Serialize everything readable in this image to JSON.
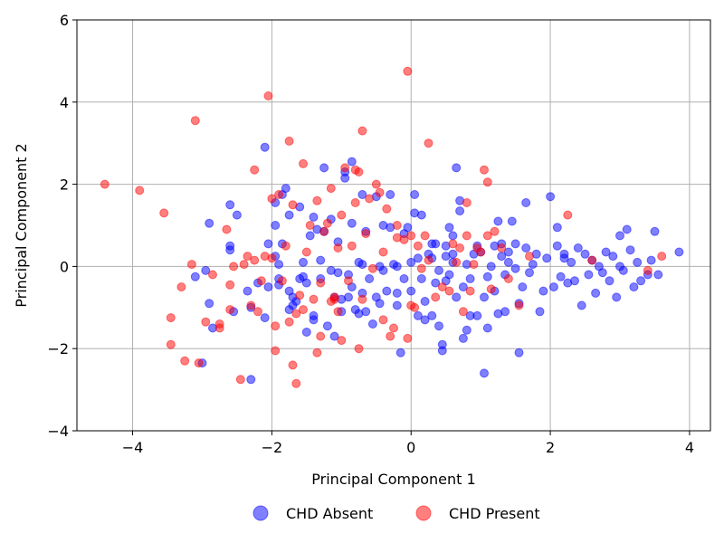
{
  "chart_data": {
    "type": "scatter",
    "title": "",
    "xlabel": "Principal Component 1",
    "ylabel": "Principal Component 2",
    "xlim": [
      -4.8,
      4.3
    ],
    "ylim": [
      -4,
      6
    ],
    "xticks": [
      -4,
      -2,
      0,
      2,
      4
    ],
    "yticks": [
      -4,
      -2,
      0,
      2,
      4,
      6
    ],
    "xtick_labels": [
      "−4",
      "−2",
      "0",
      "2",
      "4"
    ],
    "ytick_labels": [
      "−4",
      "−2",
      "0",
      "2",
      "4",
      "6"
    ],
    "grid": true,
    "legend_position": "bottom-center",
    "series": [
      {
        "name": "CHD Absent",
        "color": "#0000ff",
        "points": [
          [
            -3.1,
            -0.25
          ],
          [
            -2.95,
            -0.1
          ],
          [
            -2.9,
            1.05
          ],
          [
            -2.9,
            -0.9
          ],
          [
            -2.85,
            -1.5
          ],
          [
            -3.0,
            -2.35
          ],
          [
            -2.6,
            0.5
          ],
          [
            -2.6,
            0.4
          ],
          [
            -2.6,
            1.5
          ],
          [
            -2.55,
            -1.1
          ],
          [
            -2.5,
            1.25
          ],
          [
            -2.35,
            -0.6
          ],
          [
            -2.3,
            -1.0
          ],
          [
            -2.3,
            -2.75
          ],
          [
            -2.2,
            -0.4
          ],
          [
            -2.05,
            -0.5
          ],
          [
            -2.1,
            -1.25
          ],
          [
            -2.05,
            0.55
          ],
          [
            -2.1,
            2.9
          ],
          [
            -1.95,
            1.55
          ],
          [
            -1.95,
            1.0
          ],
          [
            -1.95,
            0.25
          ],
          [
            -1.9,
            0.05
          ],
          [
            -1.9,
            -0.3
          ],
          [
            -1.9,
            -0.45
          ],
          [
            -1.85,
            0.55
          ],
          [
            -1.85,
            1.75
          ],
          [
            -1.8,
            1.9
          ],
          [
            -1.75,
            1.25
          ],
          [
            -1.75,
            -0.6
          ],
          [
            -1.7,
            -0.95
          ],
          [
            -1.75,
            -1.05
          ],
          [
            -1.7,
            -0.75
          ],
          [
            -1.65,
            -0.85
          ],
          [
            -1.6,
            1.45
          ],
          [
            -1.55,
            0.1
          ],
          [
            -1.55,
            -0.25
          ],
          [
            -1.5,
            -0.4
          ],
          [
            -1.5,
            -1.6
          ],
          [
            -1.45,
            0.75
          ],
          [
            -1.4,
            1.2
          ],
          [
            -1.4,
            -1.3
          ],
          [
            -1.4,
            -1.2
          ],
          [
            -1.35,
            0.9
          ],
          [
            -1.3,
            0.15
          ],
          [
            -1.3,
            -0.3
          ],
          [
            -1.25,
            2.4
          ],
          [
            -1.25,
            0.85
          ],
          [
            -1.2,
            -1.45
          ],
          [
            -1.15,
            1.15
          ],
          [
            -1.15,
            -0.1
          ],
          [
            -1.1,
            -0.75
          ],
          [
            -1.1,
            -1.7
          ],
          [
            -1.05,
            0.6
          ],
          [
            -1.05,
            -0.15
          ],
          [
            -1.0,
            -1.1
          ],
          [
            -0.95,
            2.15
          ],
          [
            -0.95,
            2.3
          ],
          [
            -0.9,
            -0.2
          ],
          [
            -0.9,
            -0.75
          ],
          [
            -0.85,
            2.55
          ],
          [
            -0.85,
            1.05
          ],
          [
            -0.85,
            -0.5
          ],
          [
            -0.8,
            -1.05
          ],
          [
            -0.75,
            -1.15
          ],
          [
            -0.75,
            0.1
          ],
          [
            -0.7,
            1.75
          ],
          [
            -0.7,
            0.05
          ],
          [
            -0.7,
            -0.65
          ],
          [
            -0.65,
            -1.1
          ],
          [
            -0.65,
            0.85
          ],
          [
            -0.6,
            -0.3
          ],
          [
            -0.55,
            -1.4
          ],
          [
            -0.5,
            -0.75
          ],
          [
            -0.5,
            1.7
          ],
          [
            -0.45,
            -0.9
          ],
          [
            -0.45,
            0.0
          ],
          [
            -0.4,
            -0.1
          ],
          [
            -0.4,
            1.0
          ],
          [
            -0.35,
            -0.6
          ],
          [
            -0.3,
            0.95
          ],
          [
            -0.3,
            1.75
          ],
          [
            -0.25,
            0.05
          ],
          [
            -0.2,
            -0.65
          ],
          [
            -0.2,
            -0.95
          ],
          [
            -0.15,
            -2.1
          ],
          [
            -0.1,
            0.8
          ],
          [
            -0.1,
            -0.3
          ],
          [
            -0.05,
            0.95
          ],
          [
            0.0,
            -0.6
          ],
          [
            0.0,
            0.1
          ],
          [
            0.05,
            1.3
          ],
          [
            0.05,
            1.75
          ],
          [
            0.1,
            0.2
          ],
          [
            0.1,
            -1.2
          ],
          [
            0.15,
            1.25
          ],
          [
            0.15,
            -0.3
          ],
          [
            0.2,
            -0.85
          ],
          [
            0.2,
            -1.3
          ],
          [
            0.25,
            0.3
          ],
          [
            0.3,
            -1.2
          ],
          [
            0.3,
            0.2
          ],
          [
            0.35,
            -0.4
          ],
          [
            0.35,
            0.55
          ],
          [
            0.4,
            -0.1
          ],
          [
            0.4,
            -1.45
          ],
          [
            0.45,
            -2.05
          ],
          [
            0.45,
            -1.9
          ],
          [
            0.5,
            0.5
          ],
          [
            0.5,
            -0.35
          ],
          [
            0.5,
            0.25
          ],
          [
            0.55,
            0.95
          ],
          [
            0.55,
            -0.2
          ],
          [
            0.6,
            0.75
          ],
          [
            0.6,
            0.3
          ],
          [
            0.65,
            -0.75
          ],
          [
            0.65,
            2.4
          ],
          [
            0.7,
            1.35
          ],
          [
            0.7,
            1.6
          ],
          [
            0.75,
            -1.75
          ],
          [
            0.75,
            -0.5
          ],
          [
            0.8,
            -1.55
          ],
          [
            0.8,
            0.05
          ],
          [
            0.85,
            -0.3
          ],
          [
            0.85,
            -1.2
          ],
          [
            0.9,
            0.3
          ],
          [
            0.95,
            -1.2
          ],
          [
            1.0,
            0.35
          ],
          [
            1.05,
            -0.75
          ],
          [
            1.05,
            -2.6
          ],
          [
            1.1,
            -0.25
          ],
          [
            1.1,
            -1.5
          ],
          [
            1.15,
            0.0
          ],
          [
            1.2,
            -0.6
          ],
          [
            1.2,
            0.5
          ],
          [
            1.25,
            1.1
          ],
          [
            1.25,
            -1.15
          ],
          [
            1.3,
            0.25
          ],
          [
            1.3,
            0.55
          ],
          [
            1.35,
            -0.2
          ],
          [
            1.35,
            -1.1
          ],
          [
            1.4,
            0.1
          ],
          [
            1.45,
            1.1
          ],
          [
            1.5,
            -0.05
          ],
          [
            1.5,
            0.55
          ],
          [
            1.55,
            -2.1
          ],
          [
            1.55,
            -0.9
          ],
          [
            1.6,
            -0.5
          ],
          [
            1.65,
            1.55
          ],
          [
            1.65,
            0.45
          ],
          [
            1.7,
            -0.15
          ],
          [
            1.75,
            0.05
          ],
          [
            1.8,
            0.3
          ],
          [
            1.85,
            -1.1
          ],
          [
            1.9,
            -0.6
          ],
          [
            1.95,
            0.2
          ],
          [
            2.0,
            1.7
          ],
          [
            2.05,
            -0.5
          ],
          [
            2.1,
            0.95
          ],
          [
            2.1,
            0.5
          ],
          [
            2.15,
            -0.25
          ],
          [
            2.2,
            0.3
          ],
          [
            2.25,
            -0.4
          ],
          [
            2.3,
            0.1
          ],
          [
            2.35,
            -0.35
          ],
          [
            2.4,
            0.45
          ],
          [
            2.45,
            -0.95
          ],
          [
            2.5,
            0.3
          ],
          [
            2.55,
            -0.2
          ],
          [
            2.6,
            0.15
          ],
          [
            2.65,
            -0.65
          ],
          [
            2.7,
            0.0
          ],
          [
            2.75,
            -0.15
          ],
          [
            2.8,
            0.35
          ],
          [
            2.85,
            -0.35
          ],
          [
            2.9,
            0.25
          ],
          [
            2.95,
            -0.75
          ],
          [
            3.0,
            0.75
          ],
          [
            3.05,
            -0.1
          ],
          [
            3.1,
            0.9
          ],
          [
            3.15,
            0.4
          ],
          [
            3.2,
            -0.5
          ],
          [
            3.25,
            0.1
          ],
          [
            3.3,
            -0.35
          ],
          [
            3.4,
            -0.2
          ],
          [
            3.45,
            0.15
          ],
          [
            3.5,
            0.85
          ],
          [
            3.55,
            -0.2
          ],
          [
            3.85,
            0.35
          ],
          [
            3.0,
            0.0
          ],
          [
            2.2,
            0.2
          ],
          [
            1.4,
            0.35
          ],
          [
            0.6,
            0.1
          ],
          [
            -0.2,
            0.0
          ],
          [
            -1.0,
            -0.8
          ],
          [
            -1.6,
            -0.3
          ],
          [
            0.3,
            0.55
          ],
          [
            0.95,
            0.5
          ]
        ]
      },
      {
        "name": "CHD Present",
        "color": "#ff0000",
        "points": [
          [
            -4.4,
            2.0
          ],
          [
            -3.9,
            1.85
          ],
          [
            -3.55,
            1.3
          ],
          [
            -3.45,
            -1.25
          ],
          [
            -3.45,
            -1.9
          ],
          [
            -3.3,
            -0.5
          ],
          [
            -3.25,
            -2.3
          ],
          [
            -3.15,
            0.05
          ],
          [
            -3.1,
            3.55
          ],
          [
            -3.05,
            -2.35
          ],
          [
            -2.95,
            -1.35
          ],
          [
            -2.85,
            -0.2
          ],
          [
            -2.75,
            -1.5
          ],
          [
            -2.75,
            -1.4
          ],
          [
            -2.65,
            0.9
          ],
          [
            -2.6,
            -0.45
          ],
          [
            -2.6,
            -1.05
          ],
          [
            -2.55,
            0.0
          ],
          [
            -2.45,
            -2.75
          ],
          [
            -2.4,
            0.05
          ],
          [
            -2.35,
            0.25
          ],
          [
            -2.3,
            -0.95
          ],
          [
            -2.25,
            2.35
          ],
          [
            -2.25,
            0.15
          ],
          [
            -2.2,
            -1.1
          ],
          [
            -2.15,
            -0.35
          ],
          [
            -2.05,
            4.15
          ],
          [
            -2.0,
            0.2
          ],
          [
            -2.0,
            1.65
          ],
          [
            -1.95,
            -1.45
          ],
          [
            -1.95,
            -2.05
          ],
          [
            -1.9,
            1.75
          ],
          [
            -1.85,
            -0.35
          ],
          [
            -1.8,
            0.5
          ],
          [
            -1.75,
            -1.35
          ],
          [
            -1.75,
            3.05
          ],
          [
            -1.7,
            -2.4
          ],
          [
            -1.65,
            -1.15
          ],
          [
            -1.65,
            -2.85
          ],
          [
            -1.6,
            -0.7
          ],
          [
            -1.55,
            2.5
          ],
          [
            -1.5,
            0.35
          ],
          [
            -1.45,
            1.0
          ],
          [
            -1.4,
            -0.8
          ],
          [
            -1.35,
            -2.1
          ],
          [
            -1.35,
            1.6
          ],
          [
            -1.3,
            -0.4
          ],
          [
            -1.3,
            -1.7
          ],
          [
            -1.25,
            0.85
          ],
          [
            -1.2,
            1.05
          ],
          [
            -1.15,
            1.9
          ],
          [
            -1.1,
            -0.8
          ],
          [
            -1.05,
            -1.1
          ],
          [
            -1.05,
            0.45
          ],
          [
            -1.0,
            1.25
          ],
          [
            -1.0,
            -1.8
          ],
          [
            -0.95,
            2.4
          ],
          [
            -0.9,
            -0.35
          ],
          [
            -0.85,
            0.5
          ],
          [
            -0.8,
            1.55
          ],
          [
            -0.8,
            2.35
          ],
          [
            -0.75,
            2.3
          ],
          [
            -0.75,
            -2.0
          ],
          [
            -0.7,
            3.3
          ],
          [
            -0.7,
            -0.8
          ],
          [
            -0.65,
            0.8
          ],
          [
            -0.6,
            1.65
          ],
          [
            -0.55,
            -0.05
          ],
          [
            -0.5,
            2.0
          ],
          [
            -0.45,
            1.8
          ],
          [
            -0.4,
            -1.3
          ],
          [
            -0.35,
            1.4
          ],
          [
            -0.3,
            -1.7
          ],
          [
            -0.25,
            -1.5
          ],
          [
            -0.2,
            0.7
          ],
          [
            -0.1,
            0.65
          ],
          [
            -0.05,
            -1.75
          ],
          [
            -0.05,
            4.75
          ],
          [
            0.0,
            -0.95
          ],
          [
            0.05,
            -1.0
          ],
          [
            0.1,
            0.5
          ],
          [
            0.15,
            -0.05
          ],
          [
            0.2,
            0.75
          ],
          [
            0.25,
            0.15
          ],
          [
            0.25,
            3.0
          ],
          [
            0.35,
            -0.75
          ],
          [
            0.45,
            -0.5
          ],
          [
            0.55,
            -0.6
          ],
          [
            0.6,
            0.55
          ],
          [
            0.65,
            0.1
          ],
          [
            0.7,
            0.45
          ],
          [
            0.75,
            -1.1
          ],
          [
            0.8,
            0.75
          ],
          [
            0.8,
            1.55
          ],
          [
            0.85,
            -0.6
          ],
          [
            0.9,
            0.05
          ],
          [
            0.95,
            0.45
          ],
          [
            1.0,
            0.35
          ],
          [
            1.05,
            2.35
          ],
          [
            1.1,
            0.75
          ],
          [
            1.1,
            2.05
          ],
          [
            1.15,
            -0.55
          ],
          [
            1.2,
            0.85
          ],
          [
            1.3,
            0.45
          ],
          [
            1.4,
            -0.3
          ],
          [
            1.55,
            -0.95
          ],
          [
            1.7,
            0.25
          ],
          [
            2.25,
            1.25
          ],
          [
            2.6,
            0.15
          ],
          [
            3.4,
            -0.1
          ],
          [
            3.6,
            0.25
          ],
          [
            -1.1,
            -0.75
          ],
          [
            -1.15,
            -0.85
          ],
          [
            -1.55,
            -1.05
          ],
          [
            -0.4,
            0.35
          ],
          [
            -0.2,
            1.0
          ],
          [
            0.0,
            0.75
          ],
          [
            -1.7,
            1.5
          ],
          [
            -2.1,
            0.25
          ]
        ]
      }
    ]
  }
}
